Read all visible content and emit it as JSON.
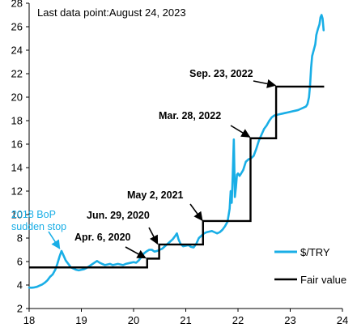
{
  "chart_data": {
    "type": "line",
    "subtitle": "Last data point:August 24, 2023",
    "xlim": [
      18,
      24
    ],
    "ylim": [
      2,
      28
    ],
    "x_ticks": [
      "18",
      "19",
      "20",
      "21",
      "22",
      "23",
      "24"
    ],
    "y_ticks": [
      "2",
      "4",
      "6",
      "8",
      "10",
      "12",
      "14",
      "16",
      "18",
      "20",
      "22",
      "24",
      "26",
      "28"
    ],
    "grid": false,
    "legend_position": "bottom-right",
    "colors": {
      "usdtry": "#19AEE6",
      "fair_value": "#000000"
    },
    "series": [
      {
        "name": "$/TRY",
        "key": "usdtry",
        "points": [
          [
            18.0,
            3.78
          ],
          [
            18.05,
            3.77
          ],
          [
            18.1,
            3.8
          ],
          [
            18.15,
            3.85
          ],
          [
            18.2,
            3.95
          ],
          [
            18.25,
            4.05
          ],
          [
            18.3,
            4.2
          ],
          [
            18.35,
            4.4
          ],
          [
            18.4,
            4.7
          ],
          [
            18.45,
            4.9
          ],
          [
            18.5,
            5.3
          ],
          [
            18.54,
            5.8
          ],
          [
            18.58,
            6.4
          ],
          [
            18.62,
            6.9
          ],
          [
            18.64,
            6.7
          ],
          [
            18.67,
            6.4
          ],
          [
            18.7,
            6.1
          ],
          [
            18.75,
            5.8
          ],
          [
            18.8,
            5.5
          ],
          [
            18.85,
            5.4
          ],
          [
            18.9,
            5.3
          ],
          [
            18.95,
            5.25
          ],
          [
            19.0,
            5.3
          ],
          [
            19.05,
            5.35
          ],
          [
            19.1,
            5.45
          ],
          [
            19.15,
            5.6
          ],
          [
            19.2,
            5.75
          ],
          [
            19.25,
            5.9
          ],
          [
            19.3,
            6.05
          ],
          [
            19.35,
            5.9
          ],
          [
            19.4,
            5.8
          ],
          [
            19.45,
            5.7
          ],
          [
            19.5,
            5.75
          ],
          [
            19.55,
            5.8
          ],
          [
            19.6,
            5.7
          ],
          [
            19.65,
            5.75
          ],
          [
            19.7,
            5.8
          ],
          [
            19.75,
            5.75
          ],
          [
            19.8,
            5.7
          ],
          [
            19.85,
            5.8
          ],
          [
            19.9,
            5.85
          ],
          [
            19.95,
            5.9
          ],
          [
            20.0,
            5.95
          ],
          [
            20.05,
            5.9
          ],
          [
            20.1,
            6.1
          ],
          [
            20.15,
            6.4
          ],
          [
            20.2,
            6.7
          ],
          [
            20.26,
            6.9
          ],
          [
            20.3,
            7.0
          ],
          [
            20.35,
            7.0
          ],
          [
            20.4,
            6.85
          ],
          [
            20.45,
            6.9
          ],
          [
            20.5,
            7.0
          ],
          [
            20.55,
            7.1
          ],
          [
            20.6,
            7.3
          ],
          [
            20.65,
            7.5
          ],
          [
            20.7,
            7.7
          ],
          [
            20.75,
            7.9
          ],
          [
            20.8,
            8.2
          ],
          [
            20.83,
            8.4
          ],
          [
            20.86,
            7.9
          ],
          [
            20.9,
            7.5
          ],
          [
            20.95,
            7.3
          ],
          [
            21.0,
            7.35
          ],
          [
            21.05,
            7.4
          ],
          [
            21.1,
            7.25
          ],
          [
            21.15,
            7.2
          ],
          [
            21.2,
            7.5
          ],
          [
            21.25,
            8.0
          ],
          [
            21.3,
            8.2
          ],
          [
            21.35,
            8.4
          ],
          [
            21.4,
            8.5
          ],
          [
            21.45,
            8.55
          ],
          [
            21.5,
            8.6
          ],
          [
            21.55,
            8.5
          ],
          [
            21.6,
            8.4
          ],
          [
            21.65,
            8.5
          ],
          [
            21.7,
            8.7
          ],
          [
            21.75,
            9.0
          ],
          [
            21.8,
            9.4
          ],
          [
            21.84,
            10.5
          ],
          [
            21.86,
            12.0
          ],
          [
            21.88,
            11.0
          ],
          [
            21.9,
            13.5
          ],
          [
            21.92,
            16.4
          ],
          [
            21.93,
            14.0
          ],
          [
            21.94,
            11.5
          ],
          [
            21.96,
            12.3
          ],
          [
            21.98,
            13.4
          ],
          [
            22.0,
            13.5
          ],
          [
            22.03,
            13.3
          ],
          [
            22.06,
            13.5
          ],
          [
            22.1,
            13.8
          ],
          [
            22.15,
            14.5
          ],
          [
            22.2,
            14.7
          ],
          [
            22.25,
            14.8
          ],
          [
            22.3,
            15.0
          ],
          [
            22.35,
            15.6
          ],
          [
            22.4,
            16.3
          ],
          [
            22.45,
            16.8
          ],
          [
            22.5,
            17.3
          ],
          [
            22.55,
            17.6
          ],
          [
            22.6,
            18.0
          ],
          [
            22.65,
            18.3
          ],
          [
            22.7,
            18.45
          ],
          [
            22.75,
            18.5
          ],
          [
            22.8,
            18.55
          ],
          [
            22.85,
            18.6
          ],
          [
            22.9,
            18.65
          ],
          [
            22.95,
            18.7
          ],
          [
            23.0,
            18.75
          ],
          [
            23.05,
            18.8
          ],
          [
            23.1,
            18.85
          ],
          [
            23.15,
            18.9
          ],
          [
            23.2,
            19.0
          ],
          [
            23.25,
            19.1
          ],
          [
            23.3,
            19.2
          ],
          [
            23.33,
            19.4
          ],
          [
            23.36,
            20.0
          ],
          [
            23.38,
            21.0
          ],
          [
            23.4,
            22.5
          ],
          [
            23.42,
            23.5
          ],
          [
            23.45,
            24.0
          ],
          [
            23.48,
            24.5
          ],
          [
            23.5,
            25.3
          ],
          [
            23.53,
            25.8
          ],
          [
            23.56,
            26.2
          ],
          [
            23.58,
            26.8
          ],
          [
            23.6,
            27.0
          ],
          [
            23.62,
            26.7
          ],
          [
            23.64,
            25.7
          ]
        ]
      },
      {
        "name": "Fair value",
        "key": "fair_value",
        "points": [
          [
            18.0,
            5.5
          ],
          [
            20.26,
            5.5
          ],
          [
            20.26,
            6.25
          ],
          [
            20.49,
            6.25
          ],
          [
            20.49,
            7.45
          ],
          [
            21.33,
            7.45
          ],
          [
            21.33,
            9.45
          ],
          [
            22.24,
            9.45
          ],
          [
            22.24,
            16.5
          ],
          [
            22.73,
            16.5
          ],
          [
            22.73,
            20.9
          ],
          [
            23.65,
            20.9
          ]
        ]
      }
    ],
    "annotations": [
      {
        "key": "bop",
        "text": [
          "2018 BoP",
          "sudden stop"
        ],
        "color": "cyan",
        "anchor": [
          18.63,
          6.9
        ]
      },
      {
        "key": "apr",
        "text": [
          "Apr. 6, 2020"
        ],
        "color": "black",
        "anchor": [
          20.26,
          6.1
        ]
      },
      {
        "key": "jun",
        "text": [
          "Jun. 29, 2020"
        ],
        "color": "black",
        "anchor": [
          20.49,
          7.3
        ]
      },
      {
        "key": "may",
        "text": [
          "May 2, 2021"
        ],
        "color": "black",
        "anchor": [
          21.33,
          9.3
        ]
      },
      {
        "key": "mar",
        "text": [
          "Mar. 28, 2022"
        ],
        "color": "black",
        "anchor": [
          22.24,
          16.4
        ]
      },
      {
        "key": "sep",
        "text": [
          "Sep. 23, 2022"
        ],
        "color": "black",
        "anchor": [
          22.73,
          20.8
        ]
      }
    ]
  }
}
